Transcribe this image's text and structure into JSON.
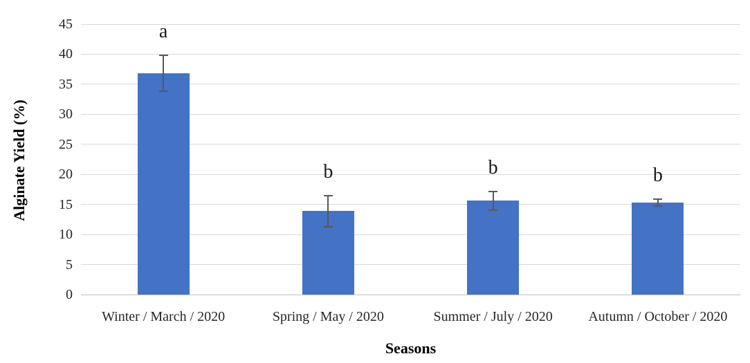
{
  "chart_data": {
    "type": "bar",
    "title": "",
    "xlabel": "Seasons",
    "ylabel": "Alginate Yield (%)",
    "categories": [
      "Winter / March / 2020",
      "Spring / May / 2020",
      "Summer / July / 2020",
      "Autumn / October / 2020"
    ],
    "values": [
      36.8,
      13.9,
      15.6,
      15.3
    ],
    "error_bars": [
      3.0,
      2.6,
      1.6,
      0.6
    ],
    "sig_letters": [
      "a",
      "b",
      "b",
      "b"
    ],
    "ylim": [
      0,
      45
    ],
    "yticks": [
      0,
      5,
      10,
      15,
      20,
      25,
      30,
      35,
      40,
      45
    ],
    "grid": true,
    "legend": false,
    "bar_color": "#4472C4",
    "error_bar_color": "#595959",
    "gridline_color": "#D9D9D9",
    "tick_label_color": "#262626"
  }
}
